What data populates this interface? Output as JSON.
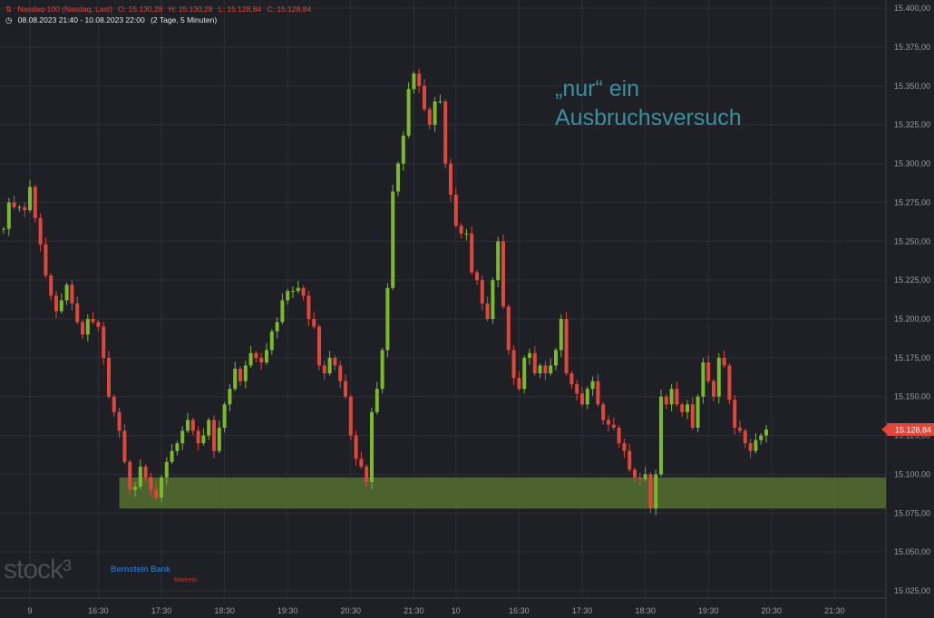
{
  "header": {
    "instrument": "Nasdaq-100 (Nasdaq, Last)",
    "open": "O: 15.130,28",
    "high": "H: 15.130,28",
    "low": "L: 15.128,84",
    "close": "C: 15.128,84",
    "range": "08.08.2023 21:40 - 10.08.2023 22:00",
    "period": "(2 Tage, 5 Minuten)"
  },
  "watermark": "stock³",
  "broker": {
    "name": "Bernstein Bank",
    "sub": "Markets"
  },
  "annotation": {
    "line1": "„nur“ ein",
    "line2": "Ausbruchsversuch"
  },
  "colors": {
    "up": "#7ab82c",
    "down": "#e0473c",
    "zone": "#556e31",
    "grid": "#2c2f36",
    "background": "#1e2026",
    "annotation": "#3a8fa0"
  },
  "chart_data": {
    "type": "candlestick",
    "ylim": [
      15025,
      15410
    ],
    "y_ticks": [
      "15.025,00",
      "15.050,00",
      "15.075,00",
      "15.100,00",
      "15.125,00",
      "15.150,00",
      "15.175,00",
      "15.200,00",
      "15.225,00",
      "15.250,00",
      "15.275,00",
      "15.300,00",
      "15.325,00",
      "15.350,00",
      "15.375,00",
      "15.400,00"
    ],
    "y_tick_values": [
      15025,
      15050,
      15075,
      15100,
      15125,
      15150,
      15175,
      15200,
      15225,
      15250,
      15275,
      15300,
      15325,
      15350,
      15375,
      15400
    ],
    "x_ticks": [
      "9",
      "16:30",
      "17:30",
      "18:30",
      "19:30",
      "20:30",
      "21:30",
      "10",
      "16:30",
      "17:30",
      "18:30",
      "19:30",
      "20:30",
      "21:30"
    ],
    "x_tick_bars": [
      5,
      18,
      30,
      42,
      54,
      66,
      78,
      86,
      98,
      110,
      122,
      134,
      146,
      158
    ],
    "last_price": "15.128,84",
    "last_value": 15128.84,
    "support_zone": {
      "from": 15078,
      "to": 15098,
      "start_bar": 22
    },
    "closes": [
      15258,
      15275,
      15272,
      15272,
      15270,
      15285,
      15265,
      15248,
      15228,
      15215,
      15205,
      15212,
      15222,
      15210,
      15198,
      15190,
      15200,
      15198,
      15195,
      15175,
      15150,
      15140,
      15128,
      15108,
      15090,
      15092,
      15105,
      15098,
      15090,
      15085,
      15098,
      15108,
      15115,
      15120,
      15128,
      15135,
      15128,
      15120,
      15125,
      15135,
      15115,
      15130,
      15145,
      15155,
      15168,
      15160,
      15170,
      15178,
      15175,
      15172,
      15180,
      15192,
      15198,
      15212,
      15218,
      15218,
      15220,
      15215,
      15200,
      15195,
      15170,
      15165,
      15175,
      15170,
      15160,
      15150,
      15125,
      15110,
      15105,
      15095,
      15140,
      15155,
      15180,
      15220,
      15282,
      15300,
      15318,
      15348,
      15358,
      15350,
      15335,
      15325,
      15340,
      15340,
      15300,
      15280,
      15260,
      15255,
      15255,
      15230,
      15225,
      15210,
      15200,
      15225,
      15250,
      15208,
      15180,
      15162,
      15155,
      15175,
      15178,
      15165,
      15170,
      15165,
      15170,
      15180,
      15200,
      15165,
      15158,
      15152,
      15145,
      15155,
      15160,
      15145,
      15135,
      15132,
      15130,
      15120,
      15115,
      15103,
      15098,
      15097,
      15100,
      15078,
      15100,
      15150,
      15145,
      15155,
      15145,
      15140,
      15145,
      15130,
      15150,
      15172,
      15160,
      15150,
      15175,
      15170,
      15148,
      15130,
      15128,
      15120,
      15115,
      15122,
      15125,
      15128.84
    ],
    "open_value": 15258,
    "wick": 3
  }
}
